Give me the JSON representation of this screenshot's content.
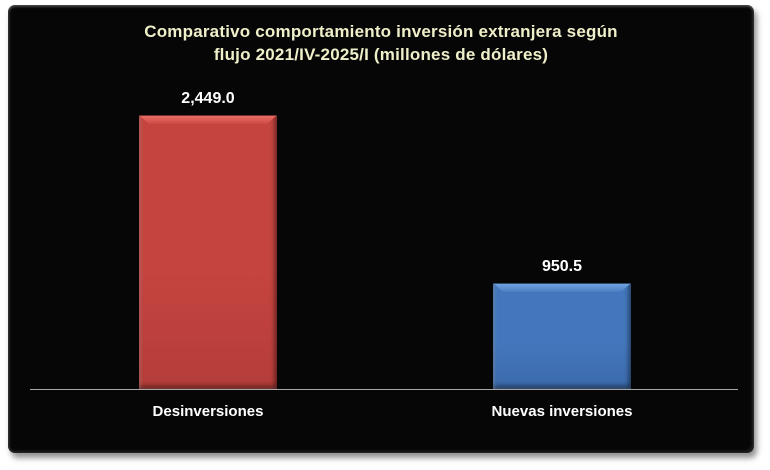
{
  "title": {
    "line1": "Comparativo comportamiento inversión extranjera según",
    "line2": "flujo 2021/IV-2025/I (millones de dólares)",
    "color": "#efefc9"
  },
  "chart_data": {
    "type": "bar",
    "title": "Comparativo comportamiento inversión extranjera según flujo 2021/IV-2025/I (millones de dólares)",
    "categories": [
      "Desinversiones",
      "Nuevas inversiones"
    ],
    "values": [
      2449.0,
      950.5
    ],
    "value_labels": [
      "2,449.0",
      "950.5"
    ],
    "bar_colors": [
      {
        "base": "#c64440",
        "light": "#ee7169",
        "dark": "#a93835"
      },
      {
        "base": "#4377bd",
        "light": "#74a7e4",
        "dark": "#36629f"
      }
    ],
    "background": "#060606",
    "text_color": "#ffffff",
    "title_color": "#efefc9",
    "axis_line_color": "#a8a8a8",
    "legend": "none",
    "grid": false,
    "xlabel": "",
    "ylabel": ""
  }
}
